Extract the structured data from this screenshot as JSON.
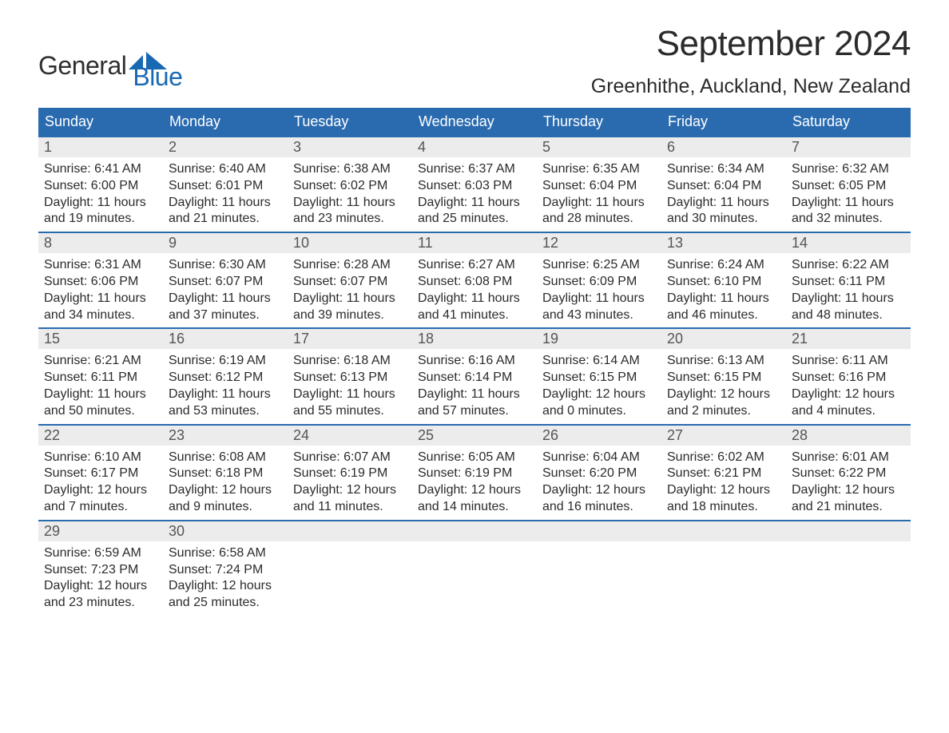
{
  "logo": {
    "text1": "General",
    "text2": "Blue",
    "accent_color": "#1968b3"
  },
  "month_title": "September 2024",
  "location": "Greenhithe, Auckland, New Zealand",
  "colors": {
    "header_bg": "#2a6bb0",
    "header_text": "#ffffff",
    "daynum_bg": "#ececec",
    "daynum_text": "#555555",
    "body_text": "#2b2b2b",
    "page_bg": "#ffffff",
    "border": "#2a6bb0"
  },
  "weekdays": [
    "Sunday",
    "Monday",
    "Tuesday",
    "Wednesday",
    "Thursday",
    "Friday",
    "Saturday"
  ],
  "weeks": [
    [
      {
        "day": "1",
        "sunrise": "6:41 AM",
        "sunset": "6:00 PM",
        "daylight": "11 hours and 19 minutes."
      },
      {
        "day": "2",
        "sunrise": "6:40 AM",
        "sunset": "6:01 PM",
        "daylight": "11 hours and 21 minutes."
      },
      {
        "day": "3",
        "sunrise": "6:38 AM",
        "sunset": "6:02 PM",
        "daylight": "11 hours and 23 minutes."
      },
      {
        "day": "4",
        "sunrise": "6:37 AM",
        "sunset": "6:03 PM",
        "daylight": "11 hours and 25 minutes."
      },
      {
        "day": "5",
        "sunrise": "6:35 AM",
        "sunset": "6:04 PM",
        "daylight": "11 hours and 28 minutes."
      },
      {
        "day": "6",
        "sunrise": "6:34 AM",
        "sunset": "6:04 PM",
        "daylight": "11 hours and 30 minutes."
      },
      {
        "day": "7",
        "sunrise": "6:32 AM",
        "sunset": "6:05 PM",
        "daylight": "11 hours and 32 minutes."
      }
    ],
    [
      {
        "day": "8",
        "sunrise": "6:31 AM",
        "sunset": "6:06 PM",
        "daylight": "11 hours and 34 minutes."
      },
      {
        "day": "9",
        "sunrise": "6:30 AM",
        "sunset": "6:07 PM",
        "daylight": "11 hours and 37 minutes."
      },
      {
        "day": "10",
        "sunrise": "6:28 AM",
        "sunset": "6:07 PM",
        "daylight": "11 hours and 39 minutes."
      },
      {
        "day": "11",
        "sunrise": "6:27 AM",
        "sunset": "6:08 PM",
        "daylight": "11 hours and 41 minutes."
      },
      {
        "day": "12",
        "sunrise": "6:25 AM",
        "sunset": "6:09 PM",
        "daylight": "11 hours and 43 minutes."
      },
      {
        "day": "13",
        "sunrise": "6:24 AM",
        "sunset": "6:10 PM",
        "daylight": "11 hours and 46 minutes."
      },
      {
        "day": "14",
        "sunrise": "6:22 AM",
        "sunset": "6:11 PM",
        "daylight": "11 hours and 48 minutes."
      }
    ],
    [
      {
        "day": "15",
        "sunrise": "6:21 AM",
        "sunset": "6:11 PM",
        "daylight": "11 hours and 50 minutes."
      },
      {
        "day": "16",
        "sunrise": "6:19 AM",
        "sunset": "6:12 PM",
        "daylight": "11 hours and 53 minutes."
      },
      {
        "day": "17",
        "sunrise": "6:18 AM",
        "sunset": "6:13 PM",
        "daylight": "11 hours and 55 minutes."
      },
      {
        "day": "18",
        "sunrise": "6:16 AM",
        "sunset": "6:14 PM",
        "daylight": "11 hours and 57 minutes."
      },
      {
        "day": "19",
        "sunrise": "6:14 AM",
        "sunset": "6:15 PM",
        "daylight": "12 hours and 0 minutes."
      },
      {
        "day": "20",
        "sunrise": "6:13 AM",
        "sunset": "6:15 PM",
        "daylight": "12 hours and 2 minutes."
      },
      {
        "day": "21",
        "sunrise": "6:11 AM",
        "sunset": "6:16 PM",
        "daylight": "12 hours and 4 minutes."
      }
    ],
    [
      {
        "day": "22",
        "sunrise": "6:10 AM",
        "sunset": "6:17 PM",
        "daylight": "12 hours and 7 minutes."
      },
      {
        "day": "23",
        "sunrise": "6:08 AM",
        "sunset": "6:18 PM",
        "daylight": "12 hours and 9 minutes."
      },
      {
        "day": "24",
        "sunrise": "6:07 AM",
        "sunset": "6:19 PM",
        "daylight": "12 hours and 11 minutes."
      },
      {
        "day": "25",
        "sunrise": "6:05 AM",
        "sunset": "6:19 PM",
        "daylight": "12 hours and 14 minutes."
      },
      {
        "day": "26",
        "sunrise": "6:04 AM",
        "sunset": "6:20 PM",
        "daylight": "12 hours and 16 minutes."
      },
      {
        "day": "27",
        "sunrise": "6:02 AM",
        "sunset": "6:21 PM",
        "daylight": "12 hours and 18 minutes."
      },
      {
        "day": "28",
        "sunrise": "6:01 AM",
        "sunset": "6:22 PM",
        "daylight": "12 hours and 21 minutes."
      }
    ],
    [
      {
        "day": "29",
        "sunrise": "6:59 AM",
        "sunset": "7:23 PM",
        "daylight": "12 hours and 23 minutes."
      },
      {
        "day": "30",
        "sunrise": "6:58 AM",
        "sunset": "7:24 PM",
        "daylight": "12 hours and 25 minutes."
      },
      {
        "day": "",
        "sunrise": "",
        "sunset": "",
        "daylight": ""
      },
      {
        "day": "",
        "sunrise": "",
        "sunset": "",
        "daylight": ""
      },
      {
        "day": "",
        "sunrise": "",
        "sunset": "",
        "daylight": ""
      },
      {
        "day": "",
        "sunrise": "",
        "sunset": "",
        "daylight": ""
      },
      {
        "day": "",
        "sunrise": "",
        "sunset": "",
        "daylight": ""
      }
    ]
  ],
  "labels": {
    "sunrise": "Sunrise: ",
    "sunset": "Sunset: ",
    "daylight": "Daylight: "
  }
}
